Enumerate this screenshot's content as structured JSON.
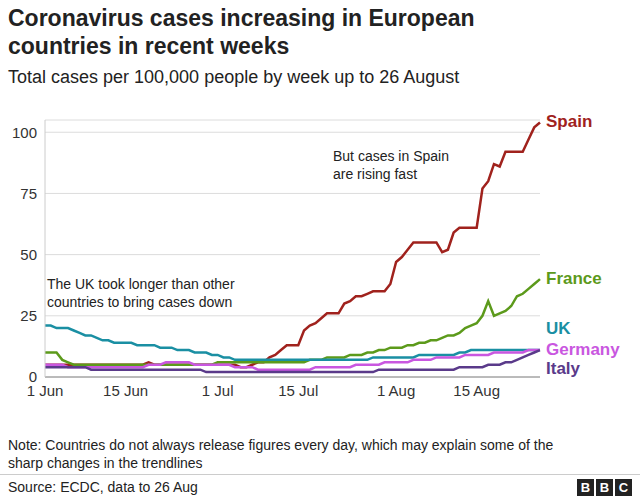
{
  "chart_data": {
    "type": "line",
    "title": [
      "Coronavirus cases increasing in European",
      "countries in recent weeks"
    ],
    "subtitle": "Total cases per 100,000 people by week up to 26 August",
    "annotations": [
      [
        "But cases in Spain",
        "are rising fast"
      ],
      [
        "The UK took longer than other",
        "countries to bring cases down"
      ]
    ],
    "note": [
      "Note: Countries do not always release figures every day, which may explain some of the",
      "sharp changes in the trendlines"
    ],
    "source": "Source: ECDC, data to 26 Aug",
    "logo": "BBC",
    "categories": [
      "1 Jun",
      null,
      null,
      null,
      null,
      null,
      null,
      null,
      null,
      null,
      null,
      null,
      null,
      null,
      "15 Jun",
      null,
      null,
      null,
      null,
      null,
      null,
      null,
      null,
      null,
      null,
      null,
      null,
      null,
      null,
      null,
      "1 Jul",
      null,
      null,
      null,
      null,
      null,
      null,
      null,
      null,
      null,
      null,
      null,
      null,
      null,
      "15 Jul",
      null,
      null,
      null,
      null,
      null,
      null,
      null,
      null,
      null,
      null,
      null,
      null,
      null,
      null,
      null,
      null,
      "1 Aug",
      null,
      null,
      null,
      null,
      null,
      null,
      null,
      null,
      null,
      null,
      null,
      null,
      null,
      "15 Aug",
      null,
      null,
      null,
      null,
      null,
      null,
      null,
      null,
      null,
      null,
      null
    ],
    "series": [
      {
        "name": "Spain",
        "color": "#a0221d",
        "values": [
          5,
          5,
          5,
          5,
          5,
          5,
          5,
          5,
          5,
          5,
          5,
          5,
          5,
          5,
          5,
          5,
          5,
          5,
          6,
          5,
          5,
          5,
          5,
          5,
          5,
          5,
          5,
          5,
          5,
          5,
          5,
          5,
          5,
          5,
          4,
          4,
          5,
          6,
          6,
          8,
          9,
          11,
          13,
          13,
          13,
          19,
          21,
          22,
          24,
          26,
          26,
          26,
          30,
          31,
          33,
          33,
          34,
          35,
          35,
          35,
          38,
          47,
          49,
          52,
          55,
          55,
          55,
          55,
          55,
          51,
          52,
          59,
          61,
          61,
          61,
          61,
          77,
          80,
          87,
          86,
          92,
          92,
          92,
          92,
          97,
          102,
          104
        ]
      },
      {
        "name": "France",
        "color": "#5c9a1b",
        "values": [
          10,
          10,
          10,
          7,
          6,
          5,
          5,
          5,
          5,
          5,
          5,
          5,
          5,
          5,
          5,
          5,
          5,
          5,
          5,
          5,
          5,
          5,
          5,
          5,
          5,
          5,
          5,
          5,
          5,
          5,
          6,
          6,
          6,
          6,
          6,
          6,
          6,
          6,
          6,
          6,
          6,
          6,
          6,
          6,
          6,
          6,
          7,
          7,
          7,
          8,
          8,
          8,
          8,
          9,
          9,
          9,
          10,
          10,
          11,
          11,
          12,
          12,
          12,
          13,
          13,
          14,
          14,
          15,
          15,
          16,
          17,
          17,
          18,
          20,
          21,
          22,
          25,
          31,
          25,
          26,
          27,
          29,
          33,
          34,
          36,
          38,
          40
        ]
      },
      {
        "name": "UK",
        "color": "#1a8fa3",
        "values": [
          21,
          21,
          20,
          20,
          20,
          19,
          18,
          17,
          17,
          16,
          15,
          15,
          14,
          14,
          14,
          14,
          13,
          13,
          13,
          13,
          12,
          12,
          12,
          11,
          11,
          11,
          10,
          10,
          10,
          9,
          9,
          8,
          8,
          7,
          7,
          7,
          7,
          7,
          7,
          7,
          7,
          7,
          7,
          7,
          7,
          7,
          7,
          7,
          7,
          7,
          7,
          7,
          7,
          7,
          7,
          7,
          7,
          8,
          8,
          8,
          8,
          8,
          8,
          8,
          8,
          9,
          9,
          9,
          9,
          9,
          9,
          9,
          10,
          10,
          11,
          11,
          11,
          11,
          11,
          11,
          11,
          11,
          11,
          11,
          11,
          11,
          11
        ]
      },
      {
        "name": "Germany",
        "color": "#c957e0",
        "values": [
          5,
          5,
          5,
          5,
          4,
          4,
          4,
          4,
          4,
          4,
          4,
          4,
          4,
          4,
          4,
          4,
          4,
          4,
          5,
          5,
          5,
          6,
          6,
          6,
          6,
          6,
          5,
          5,
          5,
          5,
          5,
          5,
          5,
          4,
          4,
          4,
          4,
          3,
          3,
          3,
          3,
          3,
          3,
          3,
          3,
          3,
          3,
          4,
          4,
          4,
          4,
          4,
          4,
          4,
          5,
          5,
          5,
          5,
          5,
          6,
          6,
          6,
          6,
          6,
          7,
          7,
          7,
          7,
          8,
          8,
          8,
          8,
          8,
          9,
          9,
          9,
          9,
          9,
          10,
          10,
          10,
          10,
          10,
          10,
          11,
          11,
          11
        ]
      },
      {
        "name": "Italy",
        "color": "#5a3a8a",
        "values": [
          4,
          4,
          4,
          4,
          4,
          4,
          4,
          4,
          3,
          3,
          3,
          3,
          3,
          3,
          3,
          3,
          3,
          3,
          3,
          3,
          3,
          3,
          3,
          3,
          3,
          3,
          3,
          3,
          2,
          2,
          2,
          2,
          2,
          2,
          2,
          2,
          2,
          2,
          2,
          2,
          2,
          2,
          2,
          2,
          2,
          2,
          2,
          2,
          2,
          2,
          2,
          2,
          2,
          2,
          2,
          2,
          2,
          2,
          3,
          3,
          3,
          3,
          3,
          3,
          3,
          3,
          3,
          3,
          3,
          3,
          3,
          3,
          4,
          4,
          4,
          4,
          4,
          5,
          5,
          5,
          6,
          6,
          7,
          8,
          9,
          10,
          11
        ]
      }
    ],
    "ylim": [
      0,
      105
    ],
    "yticks": [
      0,
      25,
      50,
      75,
      100
    ],
    "grid": true
  }
}
